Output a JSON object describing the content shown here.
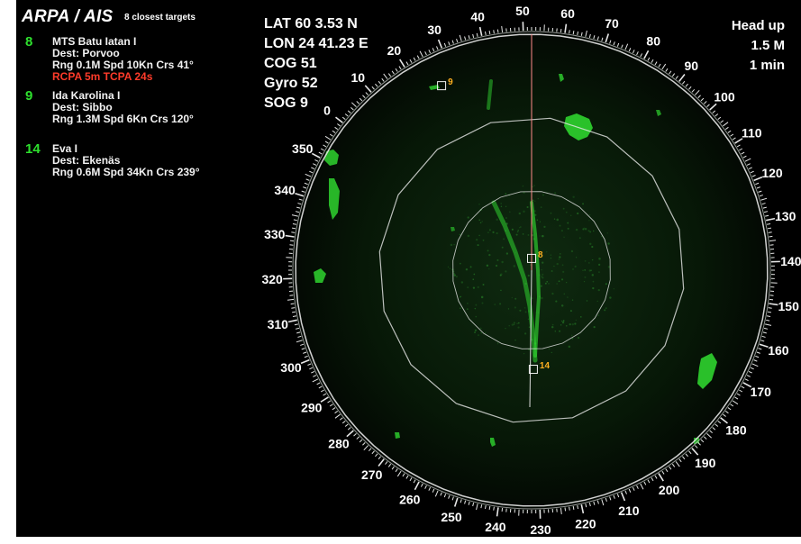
{
  "header": {
    "title": "ARPA / AIS",
    "subtitle": "8 closest targets"
  },
  "targets": [
    {
      "id": "8",
      "name": "MTS Batu Iatan I",
      "dest": "Dest: Porvoo",
      "info": "Rng 0.1M Spd 10Kn Crs 41°",
      "alarm": "RCPA  5m TCPA 24s"
    },
    {
      "id": "9",
      "name": "Ida Karolina I",
      "dest": "Dest: Sibbo",
      "info": "Rng 1.3M Spd 6Kn Crs 120°"
    },
    {
      "id": "14",
      "name": "Eva I",
      "dest": "Dest: Ekenäs",
      "info": "Rng 0.6M Spd 34Kn Crs 239°"
    }
  ],
  "nav": {
    "lat": "LAT 60 3.53 N",
    "lon": "LON 24 41.23 E",
    "cog": "COG  51",
    "gyro": "Gyro  52",
    "sog": "SOG  9"
  },
  "mode": {
    "orientation": "Head up",
    "range": "1.5 M",
    "vector_time": "1 min"
  },
  "radar": {
    "heading": 52,
    "bearing_labels": [
      "0",
      "10",
      "20",
      "30",
      "40",
      "50",
      "60",
      "70",
      "80",
      "90",
      "100",
      "110",
      "120",
      "130",
      "140",
      "150",
      "160",
      "170",
      "180",
      "190",
      "200",
      "210",
      "220",
      "230",
      "240",
      "250",
      "260",
      "270",
      "280",
      "290",
      "300",
      "310",
      "320",
      "330",
      "340",
      "350"
    ],
    "target_marks": [
      {
        "id": "8",
        "range_fraction": 0.05,
        "rel_bearing": 0
      },
      {
        "id": "9",
        "range_fraction": 0.87,
        "rel_bearing": -26
      },
      {
        "id": "14",
        "range_fraction": 0.42,
        "rel_bearing": 179
      }
    ],
    "colors": {
      "echo": "#2fd42f",
      "heading_line": "#ff8a8a",
      "ring": "#e8e8e8",
      "target_label": "#ffb020",
      "alarm": "#ff3b2a"
    }
  }
}
